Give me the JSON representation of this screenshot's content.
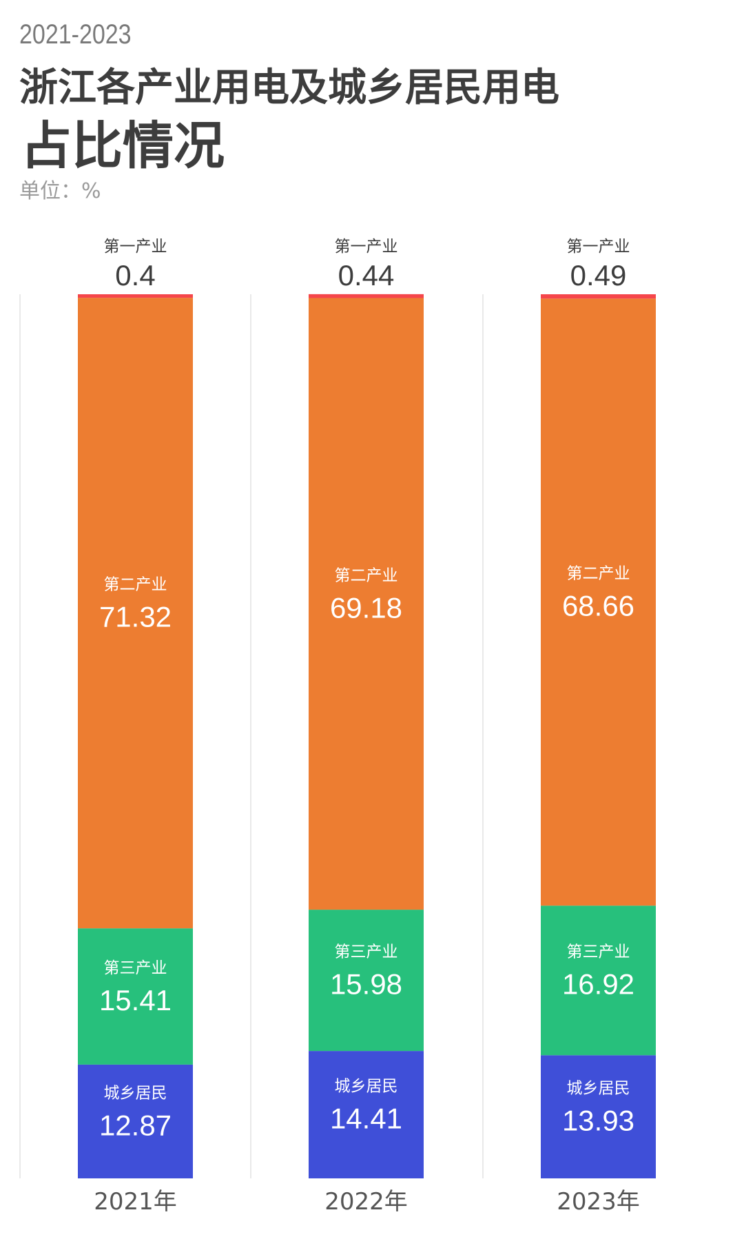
{
  "chart_data": {
    "type": "bar",
    "stacked": true,
    "subtitle": "2021-2023",
    "title_line1": "浙江各产业用电及城乡居民用电",
    "title_line2": "占比情况",
    "unit": "单位：%",
    "categories": [
      "2021年",
      "2022年",
      "2023年"
    ],
    "series": [
      {
        "name": "城乡居民",
        "color": "#3f4fd8",
        "values": [
          12.87,
          14.41,
          13.93
        ]
      },
      {
        "name": "第三产业",
        "color": "#27c07c",
        "values": [
          15.41,
          15.98,
          16.92
        ]
      },
      {
        "name": "第二产业",
        "color": "#ed7d31",
        "values": [
          71.32,
          69.18,
          68.66
        ]
      },
      {
        "name": "第一产业",
        "color": "#f5464b",
        "values": [
          0.4,
          0.44,
          0.49
        ]
      }
    ],
    "ylim": [
      0,
      100
    ],
    "grid": false,
    "legend": "none"
  }
}
